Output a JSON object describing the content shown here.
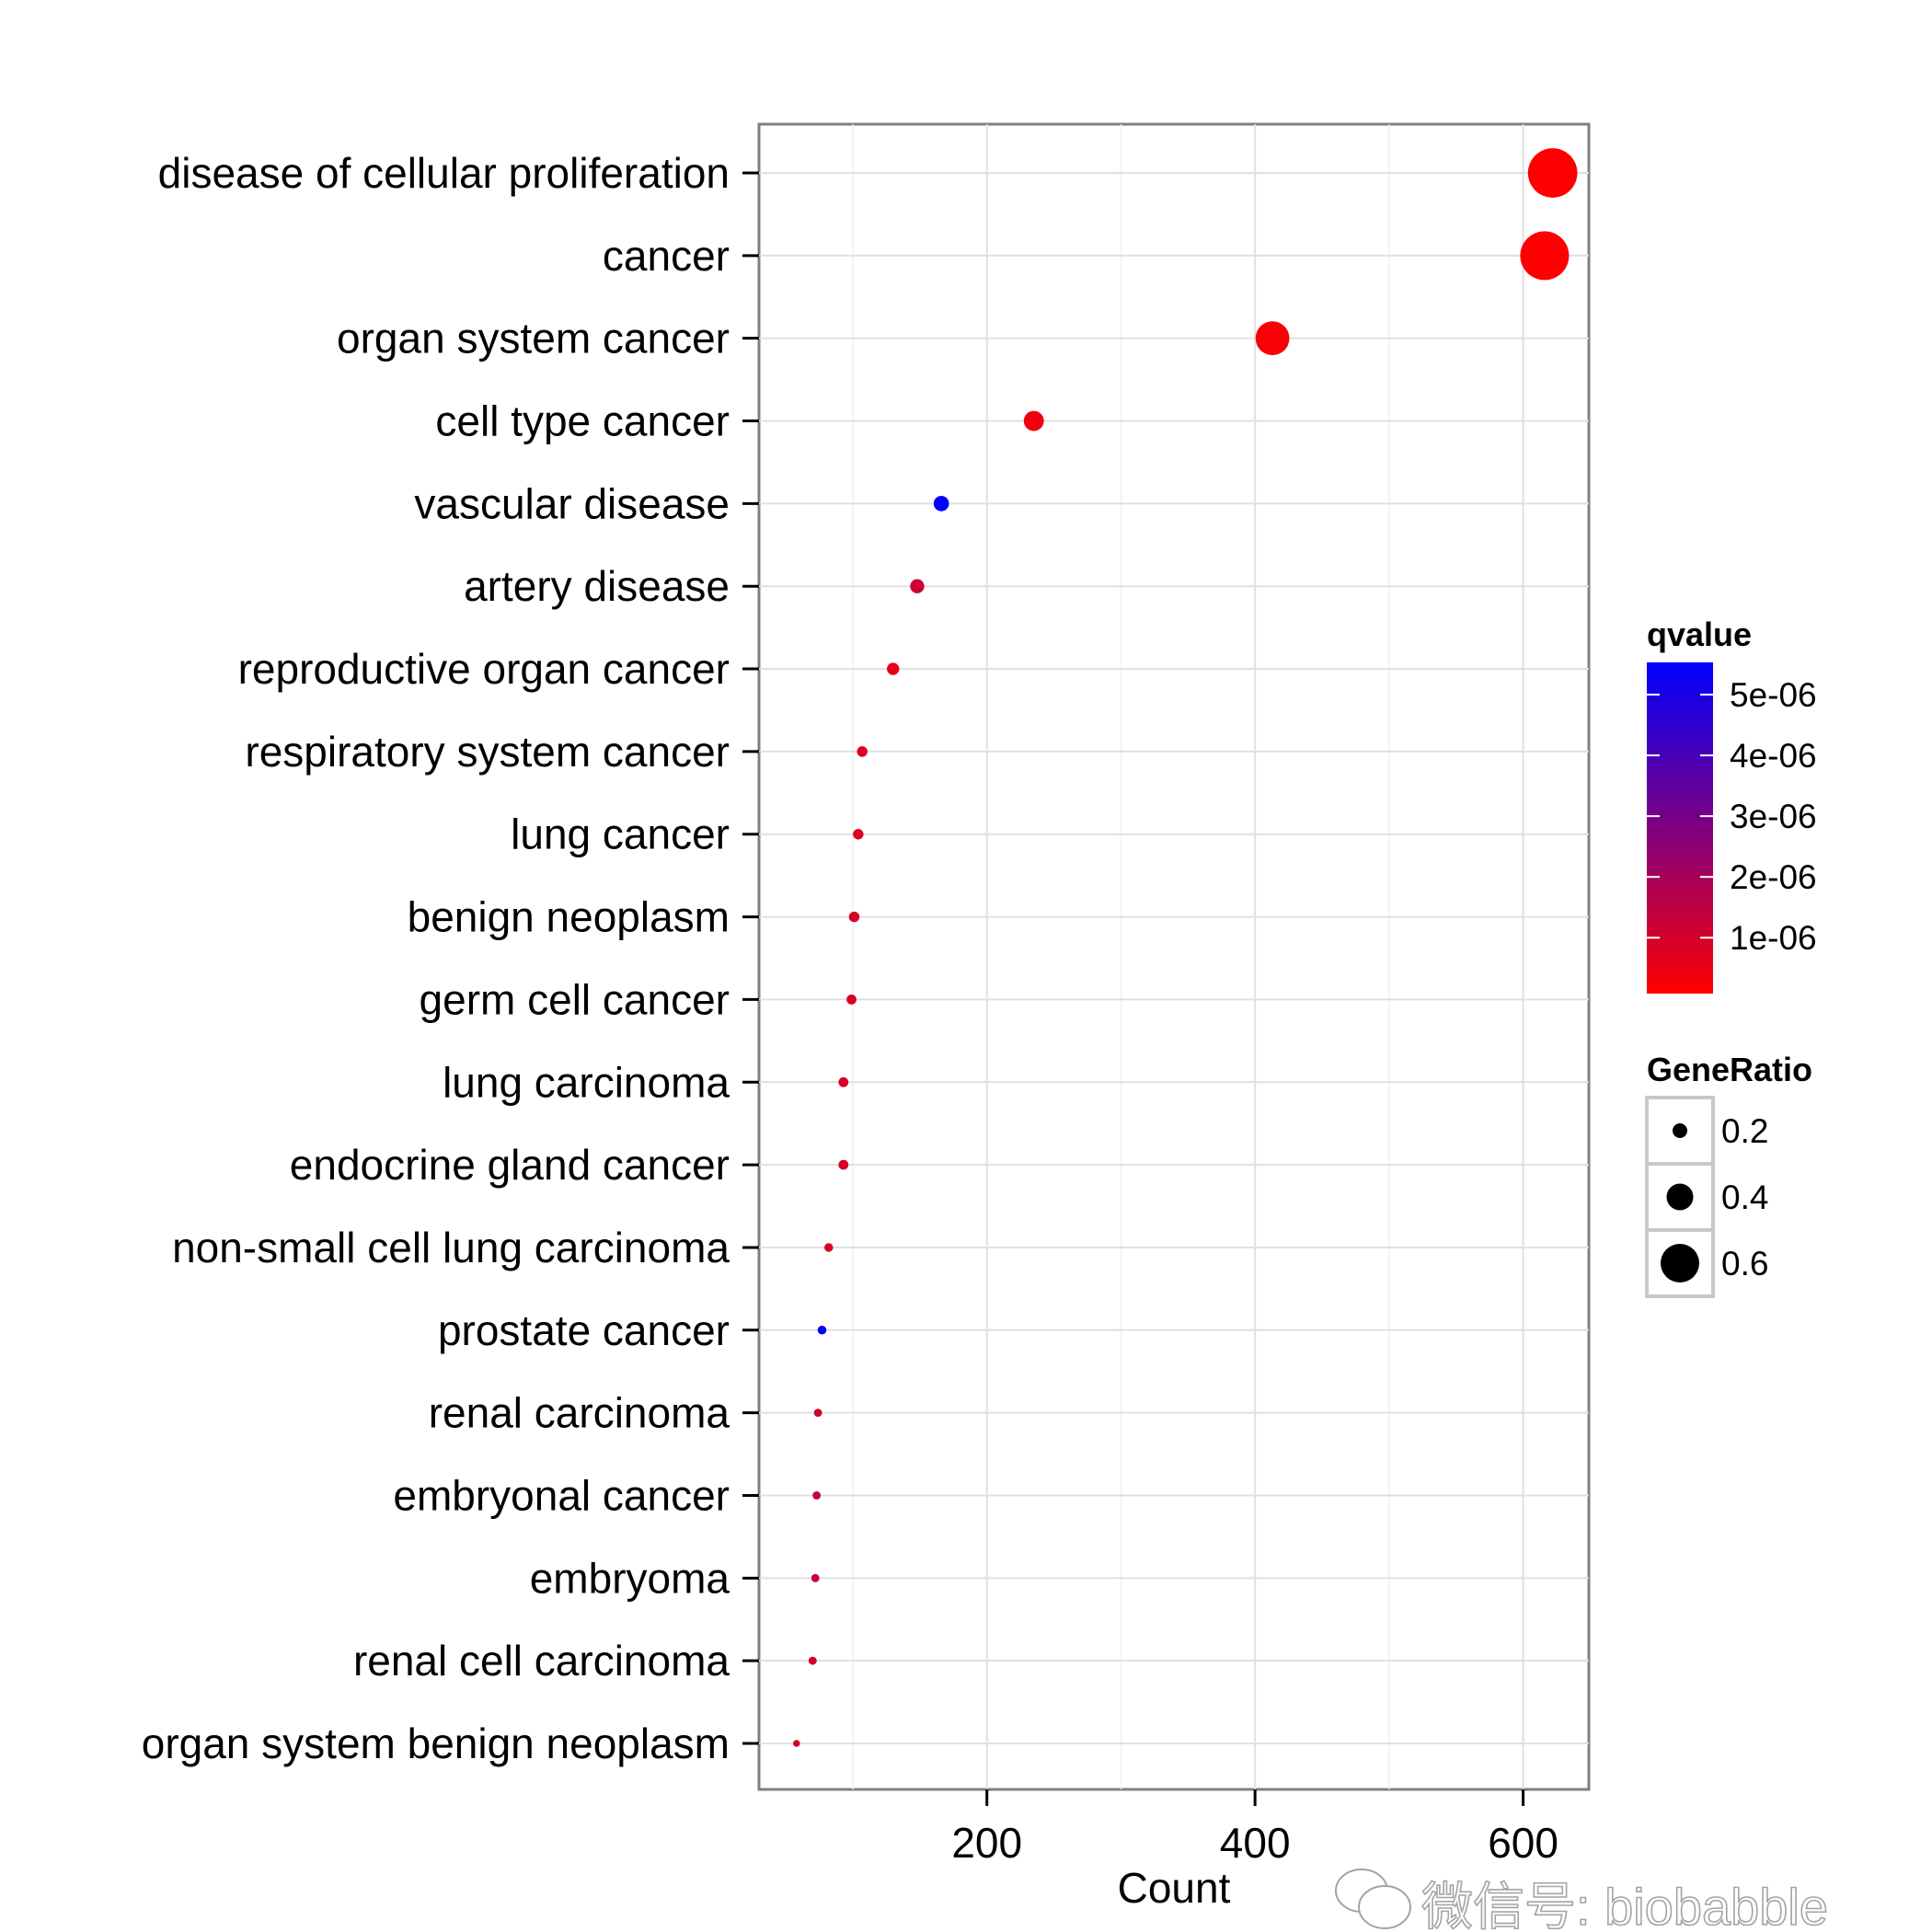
{
  "chart_data": {
    "type": "scatter",
    "title": "",
    "xlabel": "Count",
    "ylabel": "",
    "xlim": [
      30,
      649
    ],
    "x_ticks": [
      200,
      400,
      600
    ],
    "grid": true,
    "categories": [
      "disease of cellular proliferation",
      "cancer",
      "organ system cancer",
      "cell type cancer",
      "vascular disease",
      "artery disease",
      "reproductive organ cancer",
      "respiratory system cancer",
      "lung cancer",
      "benign neoplasm",
      "germ cell cancer",
      "lung carcinoma",
      "endocrine gland cancer",
      "non-small cell lung carcinoma",
      "prostate cancer",
      "renal carcinoma",
      "embryonal cancer",
      "embryoma",
      "renal cell carcinoma",
      "organ system benign neoplasm"
    ],
    "count": [
      622,
      616,
      413,
      235,
      166,
      148,
      130,
      107,
      104,
      101,
      99,
      93,
      93,
      82,
      77,
      74,
      73,
      72,
      70,
      58
    ],
    "gene_ratio": [
      0.78,
      0.77,
      0.52,
      0.29,
      0.21,
      0.19,
      0.16,
      0.13,
      0.13,
      0.13,
      0.12,
      0.12,
      0.12,
      0.1,
      0.1,
      0.09,
      0.09,
      0.09,
      0.09,
      0.07
    ],
    "qvalue": [
      1e-08,
      1e-08,
      2e-07,
      4e-07,
      5.5e-06,
      1.2e-06,
      6e-07,
      8e-07,
      8e-07,
      9e-07,
      9e-07,
      1e-06,
      9e-07,
      1e-06,
      5.5e-06,
      1.1e-06,
      1.4e-06,
      1.2e-06,
      1.1e-06,
      1e-06
    ],
    "legend_color": {
      "title": "qvalue",
      "range": [
        8e-08,
        5.53e-06
      ],
      "low_color": "#FF0000",
      "high_color": "#0000FF",
      "ticks": [
        5e-06,
        4e-06,
        3e-06,
        2e-06,
        1e-06
      ],
      "tick_labels": [
        "5e-06",
        "4e-06",
        "3e-06",
        "2e-06",
        "1e-06"
      ],
      "placement": "right"
    },
    "legend_size": {
      "title": "GeneRatio",
      "values": [
        0.2,
        0.4,
        0.6
      ],
      "labels": [
        "0.2",
        "0.4",
        "0.6"
      ],
      "placement": "right"
    }
  },
  "watermark": {
    "text": "微信号: biobabble",
    "icon": "wechat-icon"
  }
}
